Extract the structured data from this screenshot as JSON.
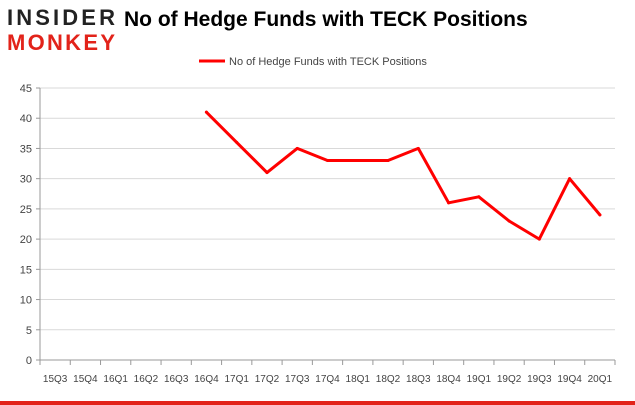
{
  "logo": {
    "line1": "INSIDER",
    "line2": "MONKEY",
    "color_dark": "#222222",
    "color_red": "#e2231a"
  },
  "chart_data": {
    "type": "line",
    "title": "No of Hedge Funds with TECK Positions",
    "xlabel": "",
    "ylabel": "",
    "categories": [
      "15Q3",
      "15Q4",
      "16Q1",
      "16Q2",
      "16Q3",
      "16Q4",
      "17Q1",
      "17Q2",
      "17Q3",
      "17Q4",
      "18Q1",
      "18Q2",
      "18Q3",
      "18Q4",
      "19Q1",
      "19Q2",
      "19Q3",
      "19Q4",
      "20Q1"
    ],
    "series": [
      {
        "name": "No of Hedge Funds with TECK Positions",
        "values": [
          null,
          null,
          null,
          null,
          null,
          41,
          36,
          31,
          35,
          33,
          33,
          33,
          35,
          26,
          27,
          23,
          20,
          30,
          24
        ],
        "color": "#ff0000"
      }
    ],
    "ylim": [
      0,
      45
    ],
    "yticks": [
      0,
      5,
      10,
      15,
      20,
      25,
      30,
      35,
      40,
      45
    ],
    "grid": true,
    "legend_position": "top-center"
  }
}
